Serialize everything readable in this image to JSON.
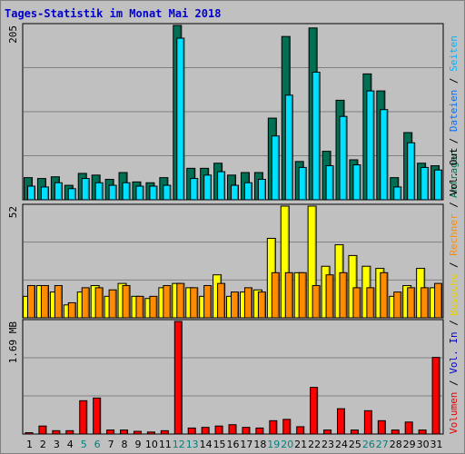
{
  "title": "Tages-Statistik im Monat Mai 2018",
  "colors": {
    "anfragen": "#006f54",
    "dateien": "#00e0ff",
    "seiten": "#00b3ff",
    "besuche": "#ffff00",
    "rechner": "#ff8c00",
    "volumen": "#ff0000",
    "frame_bg": "#c0c0c0",
    "weekend_label": "#008080",
    "weekday_label": "#000000"
  },
  "right_labels": {
    "top": [
      {
        "text": "Anfragen",
        "color": "#006f54"
      },
      {
        "text": " / ",
        "color": "#000000"
      },
      {
        "text": "Dateien",
        "color": "#0070ff"
      },
      {
        "text": " / ",
        "color": "#000000"
      },
      {
        "text": "Seiten",
        "color": "#00b3ff"
      }
    ],
    "middle": [
      {
        "text": "Besuche",
        "color": "#e6d200"
      },
      {
        "text": " / ",
        "color": "#000000"
      },
      {
        "text": "Rechner",
        "color": "#ff8c00"
      },
      {
        "text": " / ",
        "color": "#000000"
      },
      {
        "text": "Vol. Out",
        "color": "#000000"
      }
    ],
    "bottom": [
      {
        "text": "Volumen",
        "color": "#e60000"
      },
      {
        "text": " / ",
        "color": "#000000"
      },
      {
        "text": "Vol. In",
        "color": "#0000cc"
      },
      {
        "text": " / ",
        "color": "#000000"
      }
    ]
  },
  "chart_data": [
    {
      "type": "bar",
      "name": "top-panel",
      "ymax_label": "205",
      "ylim": [
        0,
        205
      ],
      "categories": [
        "1",
        "2",
        "3",
        "4",
        "5",
        "6",
        "7",
        "8",
        "9",
        "10",
        "11",
        "12",
        "13",
        "14",
        "15",
        "16",
        "17",
        "18",
        "19",
        "20",
        "21",
        "22",
        "23",
        "24",
        "25",
        "26",
        "27",
        "28",
        "29",
        "30",
        "31"
      ],
      "weekend": [
        5,
        6,
        12,
        13,
        19,
        20,
        26,
        27
      ],
      "series": [
        {
          "name": "Anfragen",
          "values": [
            26,
            25,
            27,
            17,
            31,
            29,
            24,
            32,
            21,
            20,
            26,
            205,
            37,
            37,
            43,
            29,
            32,
            32,
            96,
            192,
            45,
            202,
            57,
            117,
            47,
            148,
            128,
            26,
            79,
            43,
            40
          ]
        },
        {
          "name": "Dateien",
          "values": [
            16,
            15,
            20,
            13,
            25,
            20,
            17,
            20,
            16,
            16,
            17,
            190,
            25,
            29,
            33,
            17,
            20,
            24,
            75,
            123,
            38,
            150,
            40,
            98,
            41,
            128,
            106,
            15,
            67,
            38,
            35
          ]
        },
        {
          "name": "Seiten",
          "values": [
            14,
            12,
            14,
            10,
            18,
            14,
            12,
            14,
            10,
            10,
            12,
            140,
            20,
            20,
            24,
            12,
            14,
            16,
            48,
            98,
            26,
            104,
            28,
            68,
            28,
            84,
            76,
            10,
            42,
            26,
            22
          ]
        }
      ]
    },
    {
      "type": "bar",
      "name": "middle-panel",
      "ymax_label": "52",
      "ylim": [
        0,
        52
      ],
      "series": [
        {
          "name": "Besuche",
          "values": [
            10,
            15,
            12,
            6,
            12,
            15,
            10,
            16,
            10,
            9,
            14,
            16,
            14,
            10,
            20,
            10,
            12,
            13,
            37,
            52,
            21,
            52,
            24,
            34,
            29,
            24,
            23,
            10,
            15,
            23,
            14
          ]
        },
        {
          "name": "Rechner",
          "values": [
            15,
            15,
            15,
            7,
            14,
            14,
            13,
            15,
            10,
            10,
            15,
            16,
            14,
            15,
            16,
            12,
            14,
            12,
            21,
            21,
            21,
            15,
            20,
            21,
            14,
            14,
            21,
            12,
            14,
            14,
            16
          ]
        }
      ]
    },
    {
      "type": "bar",
      "name": "bottom-panel",
      "ymax_label": "1.69 MB",
      "ylim": [
        0,
        1.69
      ],
      "series": [
        {
          "name": "Volumen",
          "values": [
            0.02,
            0.12,
            0.05,
            0.05,
            0.5,
            0.54,
            0.06,
            0.06,
            0.04,
            0.03,
            0.05,
            1.69,
            0.09,
            0.1,
            0.12,
            0.14,
            0.1,
            0.09,
            0.2,
            0.22,
            0.11,
            0.7,
            0.06,
            0.38,
            0.06,
            0.35,
            0.2,
            0.06,
            0.18,
            0.06,
            1.15
          ]
        }
      ]
    }
  ]
}
